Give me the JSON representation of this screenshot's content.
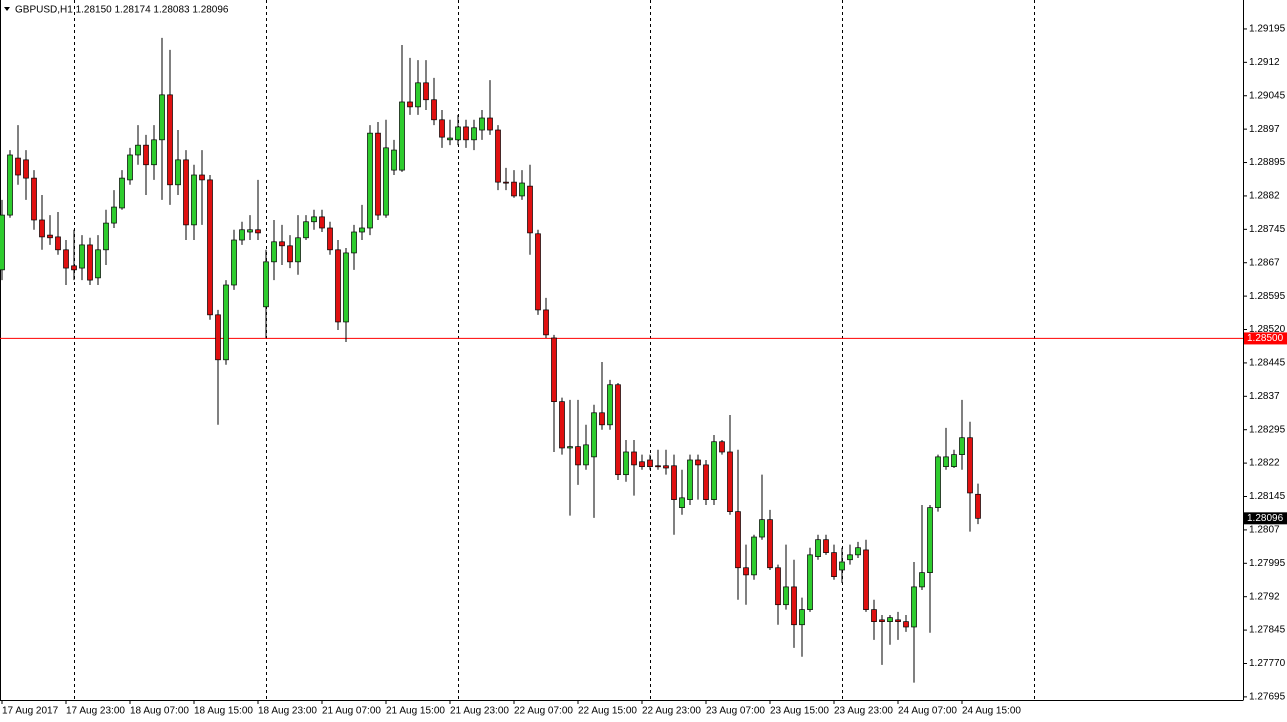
{
  "chart_data": {
    "type": "candlestick",
    "title": "GBPUSD,H1  1.28150 1.28174 1.28083 1.28096",
    "up_color": "#2ecc2e",
    "down_color": "#e01010",
    "ylim": [
      1.27688,
      1.2926
    ],
    "yticks": [
      1.29195,
      1.2912,
      1.29045,
      1.2897,
      1.28895,
      1.2882,
      1.28745,
      1.2867,
      1.28595,
      {
        "value": 1.2852,
        "label": "1.28520"
      },
      1.28445,
      1.2837,
      1.28295,
      1.2822,
      1.28145,
      1.2807,
      1.27995,
      1.2792,
      1.27845,
      {
        "value": 1.2777,
        "label": "1.27770"
      },
      1.27695
    ],
    "hline": {
      "value": 1.285,
      "label": "1.28500",
      "color": "#ff0000"
    },
    "categories": [
      "17 Aug 2017",
      null,
      null,
      null,
      null,
      null,
      null,
      null,
      "17 Aug 23:00",
      null,
      null,
      null,
      null,
      null,
      null,
      null,
      "18 Aug 07:00",
      null,
      null,
      null,
      null,
      null,
      null,
      null,
      "18 Aug 15:00",
      null,
      null,
      null,
      null,
      null,
      null,
      null,
      "18 Aug 23:00",
      null,
      null,
      null,
      null,
      null,
      null,
      null,
      "21 Aug 07:00",
      null,
      null,
      null,
      null,
      null,
      null,
      null,
      "21 Aug 15:00",
      null,
      null,
      null,
      null,
      null,
      null,
      null,
      "21 Aug 23:00",
      null,
      null,
      null,
      null,
      null,
      null,
      null,
      "22 Aug 07:00",
      null,
      null,
      null,
      null,
      null,
      null,
      null,
      "22 Aug 15:00",
      null,
      null,
      null,
      null,
      null,
      null,
      null,
      "22 Aug 23:00",
      null,
      null,
      null,
      null,
      null,
      null,
      null,
      "23 Aug 07:00",
      null,
      null,
      null,
      null,
      null,
      null,
      null,
      "23 Aug 15:00",
      null,
      null,
      null,
      null,
      null,
      null,
      null,
      "23 Aug 23:00",
      null,
      null,
      null,
      null,
      null,
      null,
      null,
      "24 Aug 07:00",
      null,
      null,
      null,
      null,
      null,
      null,
      null,
      "24 Aug 15:00",
      null,
      null
    ],
    "open": [
      1.28654,
      1.28777,
      1.28905,
      1.28901,
      1.2886,
      1.28766,
      1.28732,
      1.28728,
      1.28699,
      1.28663,
      1.28658,
      1.2871,
      1.28636,
      1.28699,
      1.28759,
      1.28793,
      1.28856,
      1.28912,
      1.28934,
      1.2889,
      1.28946,
      1.29047,
      1.28845,
      1.28901,
      1.28755,
      1.28867,
      1.28856,
      1.28553,
      1.28452,
      1.2862,
      1.28721,
      1.28739,
      1.28744,
      1.28571,
      1.28672,
      1.28717,
      1.28708,
      1.28672,
      1.28726,
      1.28762,
      1.28773,
      1.28748,
      1.28699,
      1.28537,
      1.28692,
      1.28739,
      1.28748,
      1.28961,
      1.28777,
      1.28878,
      1.28878,
      1.29031,
      1.2902,
      1.29074,
      1.29036,
      1.28991,
      1.28946,
      1.28946,
      1.28975,
      1.28946,
      1.28968,
      1.28995,
      1.28968,
      1.28851,
      1.28851,
      1.2882,
      1.28842,
      1.28735,
      1.28564,
      1.28501,
      1.28358,
      1.28254,
      1.28257,
      1.28216,
      1.28234,
      1.28333,
      1.28306,
      1.28396,
      1.28194,
      1.28245,
      1.28223,
      1.28227,
      1.28214,
      1.28214,
      1.28214,
      1.2812,
      1.28138,
      1.28227,
      1.28216,
      1.28138,
      1.28268,
      1.28245,
      1.28111,
      1.27985,
      1.27969,
      1.28054,
      1.28093,
      1.27985,
      1.27902,
      1.27942,
      1.27857,
      1.27891,
      1.2801,
      1.28048,
      1.28019,
      1.2798,
      1.28003,
      1.28014,
      1.28025,
      1.27891,
      1.27868,
      1.27864,
      1.27868,
      1.27864,
      1.27852,
      1.27942,
      1.27974,
      1.2812,
      1.28212,
      1.28212,
      1.28239,
      1.28277,
      1.2815
    ],
    "high": [
      1.28811,
      1.28923,
      1.28979,
      1.28923,
      1.28878,
      1.28822,
      1.28777,
      1.28784,
      1.28721,
      1.28744,
      1.28732,
      1.28726,
      1.28732,
      1.28789,
      1.28833,
      1.28878,
      1.28928,
      1.28979,
      1.28957,
      1.28979,
      1.29175,
      1.29148,
      1.28968,
      1.28923,
      1.2889,
      1.28923,
      1.28867,
      1.28564,
      1.28631,
      1.28744,
      1.28762,
      1.28777,
      1.28856,
      1.28699,
      1.28766,
      1.28755,
      1.28732,
      1.28777,
      1.28777,
      1.28789,
      1.28789,
      1.28762,
      1.28721,
      1.28703,
      1.28755,
      1.288,
      1.28979,
      1.28986,
      1.28991,
      1.28946,
      1.29159,
      1.2913,
      1.29125,
      1.29125,
      1.29085,
      1.29013,
      1.28991,
      1.29002,
      1.28991,
      1.28991,
      1.29013,
      1.2908,
      1.28979,
      1.28883,
      1.28878,
      1.28878,
      1.2889,
      1.28744,
      1.28591,
      1.28508,
      1.28367,
      1.28362,
      1.28362,
      1.28306,
      1.28351,
      1.28447,
      1.28407,
      1.284,
      1.28272,
      1.28272,
      1.28239,
      1.28239,
      1.2825,
      1.2825,
      1.28239,
      1.28205,
      1.28239,
      1.28239,
      1.28227,
      1.28283,
      1.28272,
      1.28328,
      1.2825,
      1.28037,
      1.28059,
      1.28194,
      1.28115,
      1.27992,
      1.28037,
      1.28003,
      1.27918,
      1.2803,
      1.28059,
      1.28059,
      1.28037,
      1.2803,
      1.28037,
      1.28043,
      1.28048,
      1.27913,
      1.27879,
      1.27879,
      1.27886,
      1.27879,
      1.27998,
      1.28126,
      1.28126,
      1.28239,
      1.28299,
      1.2825,
      1.28362,
      1.28313,
      1.28174
    ],
    "low": [
      1.28631,
      1.28771,
      1.28845,
      1.28811,
      1.28744,
      1.28699,
      1.2871,
      1.28688,
      1.2862,
      1.28631,
      1.28631,
      1.2862,
      1.2862,
      1.28665,
      1.28748,
      1.28789,
      1.28845,
      1.2889,
      1.28822,
      1.28856,
      1.28811,
      1.288,
      1.28822,
      1.28721,
      1.28721,
      1.28755,
      1.28542,
      1.28306,
      1.28441,
      1.28609,
      1.2871,
      1.28721,
      1.28721,
      1.28501,
      1.28631,
      1.28665,
      1.28658,
      1.28643,
      1.28721,
      1.28744,
      1.28739,
      1.28688,
      1.28519,
      1.28492,
      1.28654,
      1.28721,
      1.28732,
      1.28766,
      1.28771,
      1.28867,
      1.28874,
      1.29002,
      1.29002,
      1.29013,
      1.28979,
      1.28928,
      1.28934,
      1.28934,
      1.28928,
      1.28923,
      1.28946,
      1.28957,
      1.28833,
      1.28833,
      1.28816,
      1.28811,
      1.28688,
      1.28553,
      1.28501,
      1.28245,
      1.28239,
      1.28102,
      1.28171,
      1.28205,
      1.28097,
      1.28295,
      1.28295,
      1.28182,
      1.28178,
      1.28147,
      1.28205,
      1.28205,
      1.28205,
      1.28194,
      1.28059,
      1.28104,
      1.28126,
      1.28138,
      1.28126,
      1.28126,
      1.28239,
      1.28104,
      1.27913,
      1.27902,
      1.27958,
      1.28048,
      1.2798,
      1.27857,
      1.27891,
      1.27805,
      1.27785,
      1.27886,
      1.28003,
      1.28014,
      1.27958,
      1.27951,
      1.27992,
      1.28007,
      1.27886,
      1.27823,
      1.27767,
      1.27812,
      1.27823,
      1.27841,
      1.27727,
      1.27935,
      1.27839,
      1.28111,
      1.28205,
      1.28209,
      1.28205,
      1.28066,
      1.28083
    ],
    "close": [
      1.28777,
      1.28912,
      1.28867,
      1.2886,
      1.28766,
      1.28728,
      1.28726,
      1.28699,
      1.28658,
      1.28654,
      1.2871,
      1.28631,
      1.28699,
      1.28759,
      1.28795,
      1.2886,
      1.28912,
      1.28934,
      1.2889,
      1.28946,
      1.29047,
      1.28845,
      1.28901,
      1.28755,
      1.28867,
      1.28856,
      1.28553,
      1.28452,
      1.2862,
      1.28721,
      1.28744,
      1.28744,
      1.28737,
      1.28672,
      1.28717,
      1.28708,
      1.28672,
      1.28726,
      1.28762,
      1.28773,
      1.28748,
      1.28699,
      1.28537,
      1.28692,
      1.28739,
      1.28748,
      1.28961,
      1.28777,
      1.28928,
      1.28923,
      1.29031,
      1.2902,
      1.29074,
      1.29036,
      1.28991,
      1.28952,
      1.2895,
      1.28975,
      1.28946,
      1.28973,
      1.28995,
      1.28968,
      1.28851,
      1.28849,
      1.2882,
      1.28849,
      1.28737,
      1.28564,
      1.28508,
      1.28358,
      1.28254,
      1.28257,
      1.28216,
      1.28261,
      1.28333,
      1.28306,
      1.28396,
      1.28194,
      1.28245,
      1.28216,
      1.28212,
      1.28212,
      1.28212,
      1.28209,
      1.28138,
      1.28142,
      1.28227,
      1.28216,
      1.28138,
      1.28268,
      1.28245,
      1.28111,
      1.27985,
      1.27969,
      1.28054,
      1.28093,
      1.27985,
      1.27902,
      1.27942,
      1.27857,
      1.27891,
      1.28014,
      1.28048,
      1.28019,
      1.27965,
      1.27998,
      1.28014,
      1.2803,
      1.27891,
      1.27864,
      1.27864,
      1.27873,
      1.27864,
      1.27852,
      1.27942,
      1.27974,
      1.2812,
      1.28234,
      1.28234,
      1.28239,
      1.28277,
      1.28153,
      1.28096
    ]
  }
}
